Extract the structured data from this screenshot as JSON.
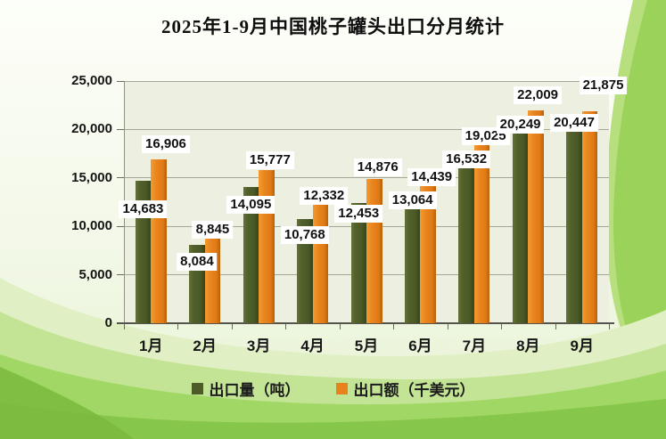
{
  "title": "2025年1-9月中国桃子罐头出口分月统计",
  "chart_data": {
    "type": "bar",
    "title": "2025年1-9月中国桃子罐头出口分月统计",
    "categories": [
      "1月",
      "2月",
      "3月",
      "4月",
      "5月",
      "6月",
      "7月",
      "8月",
      "9月"
    ],
    "series": [
      {
        "name": "出口量（吨）",
        "color": "#4c5b27",
        "values": [
          14683,
          8084,
          14095,
          10768,
          12453,
          13064,
          16532,
          20249,
          20447
        ]
      },
      {
        "name": "出口额（千美元）",
        "color": "#e8821c",
        "values": [
          16906,
          8845,
          15777,
          12332,
          14876,
          14439,
          19025,
          22009,
          21875
        ]
      }
    ],
    "value_labels": {
      "volume": [
        "14,683",
        "8,084",
        "14,095",
        "10,768",
        "12,453",
        "13,064",
        "16,532",
        "20,249",
        "20,447"
      ],
      "value": [
        "16,906",
        "8,845",
        "15,777",
        "12,332",
        "14,876",
        "14,439",
        "19,025",
        "22,009",
        "21,875"
      ]
    },
    "ylim": [
      0,
      25000
    ],
    "ytick_labels": [
      "0",
      "5,000",
      "10,000",
      "15,000",
      "20,000",
      "25,000"
    ],
    "grid": "horizontal-major",
    "legend_position": "bottom"
  },
  "colors": {
    "bar_volume": "#4c5b27",
    "bar_value": "#e8821c",
    "plot_background": "#edefe1",
    "gridline": "#a3a896",
    "axis": "#55554c",
    "label_box_background": "#ffffff",
    "background_green": "#8cc94e"
  }
}
